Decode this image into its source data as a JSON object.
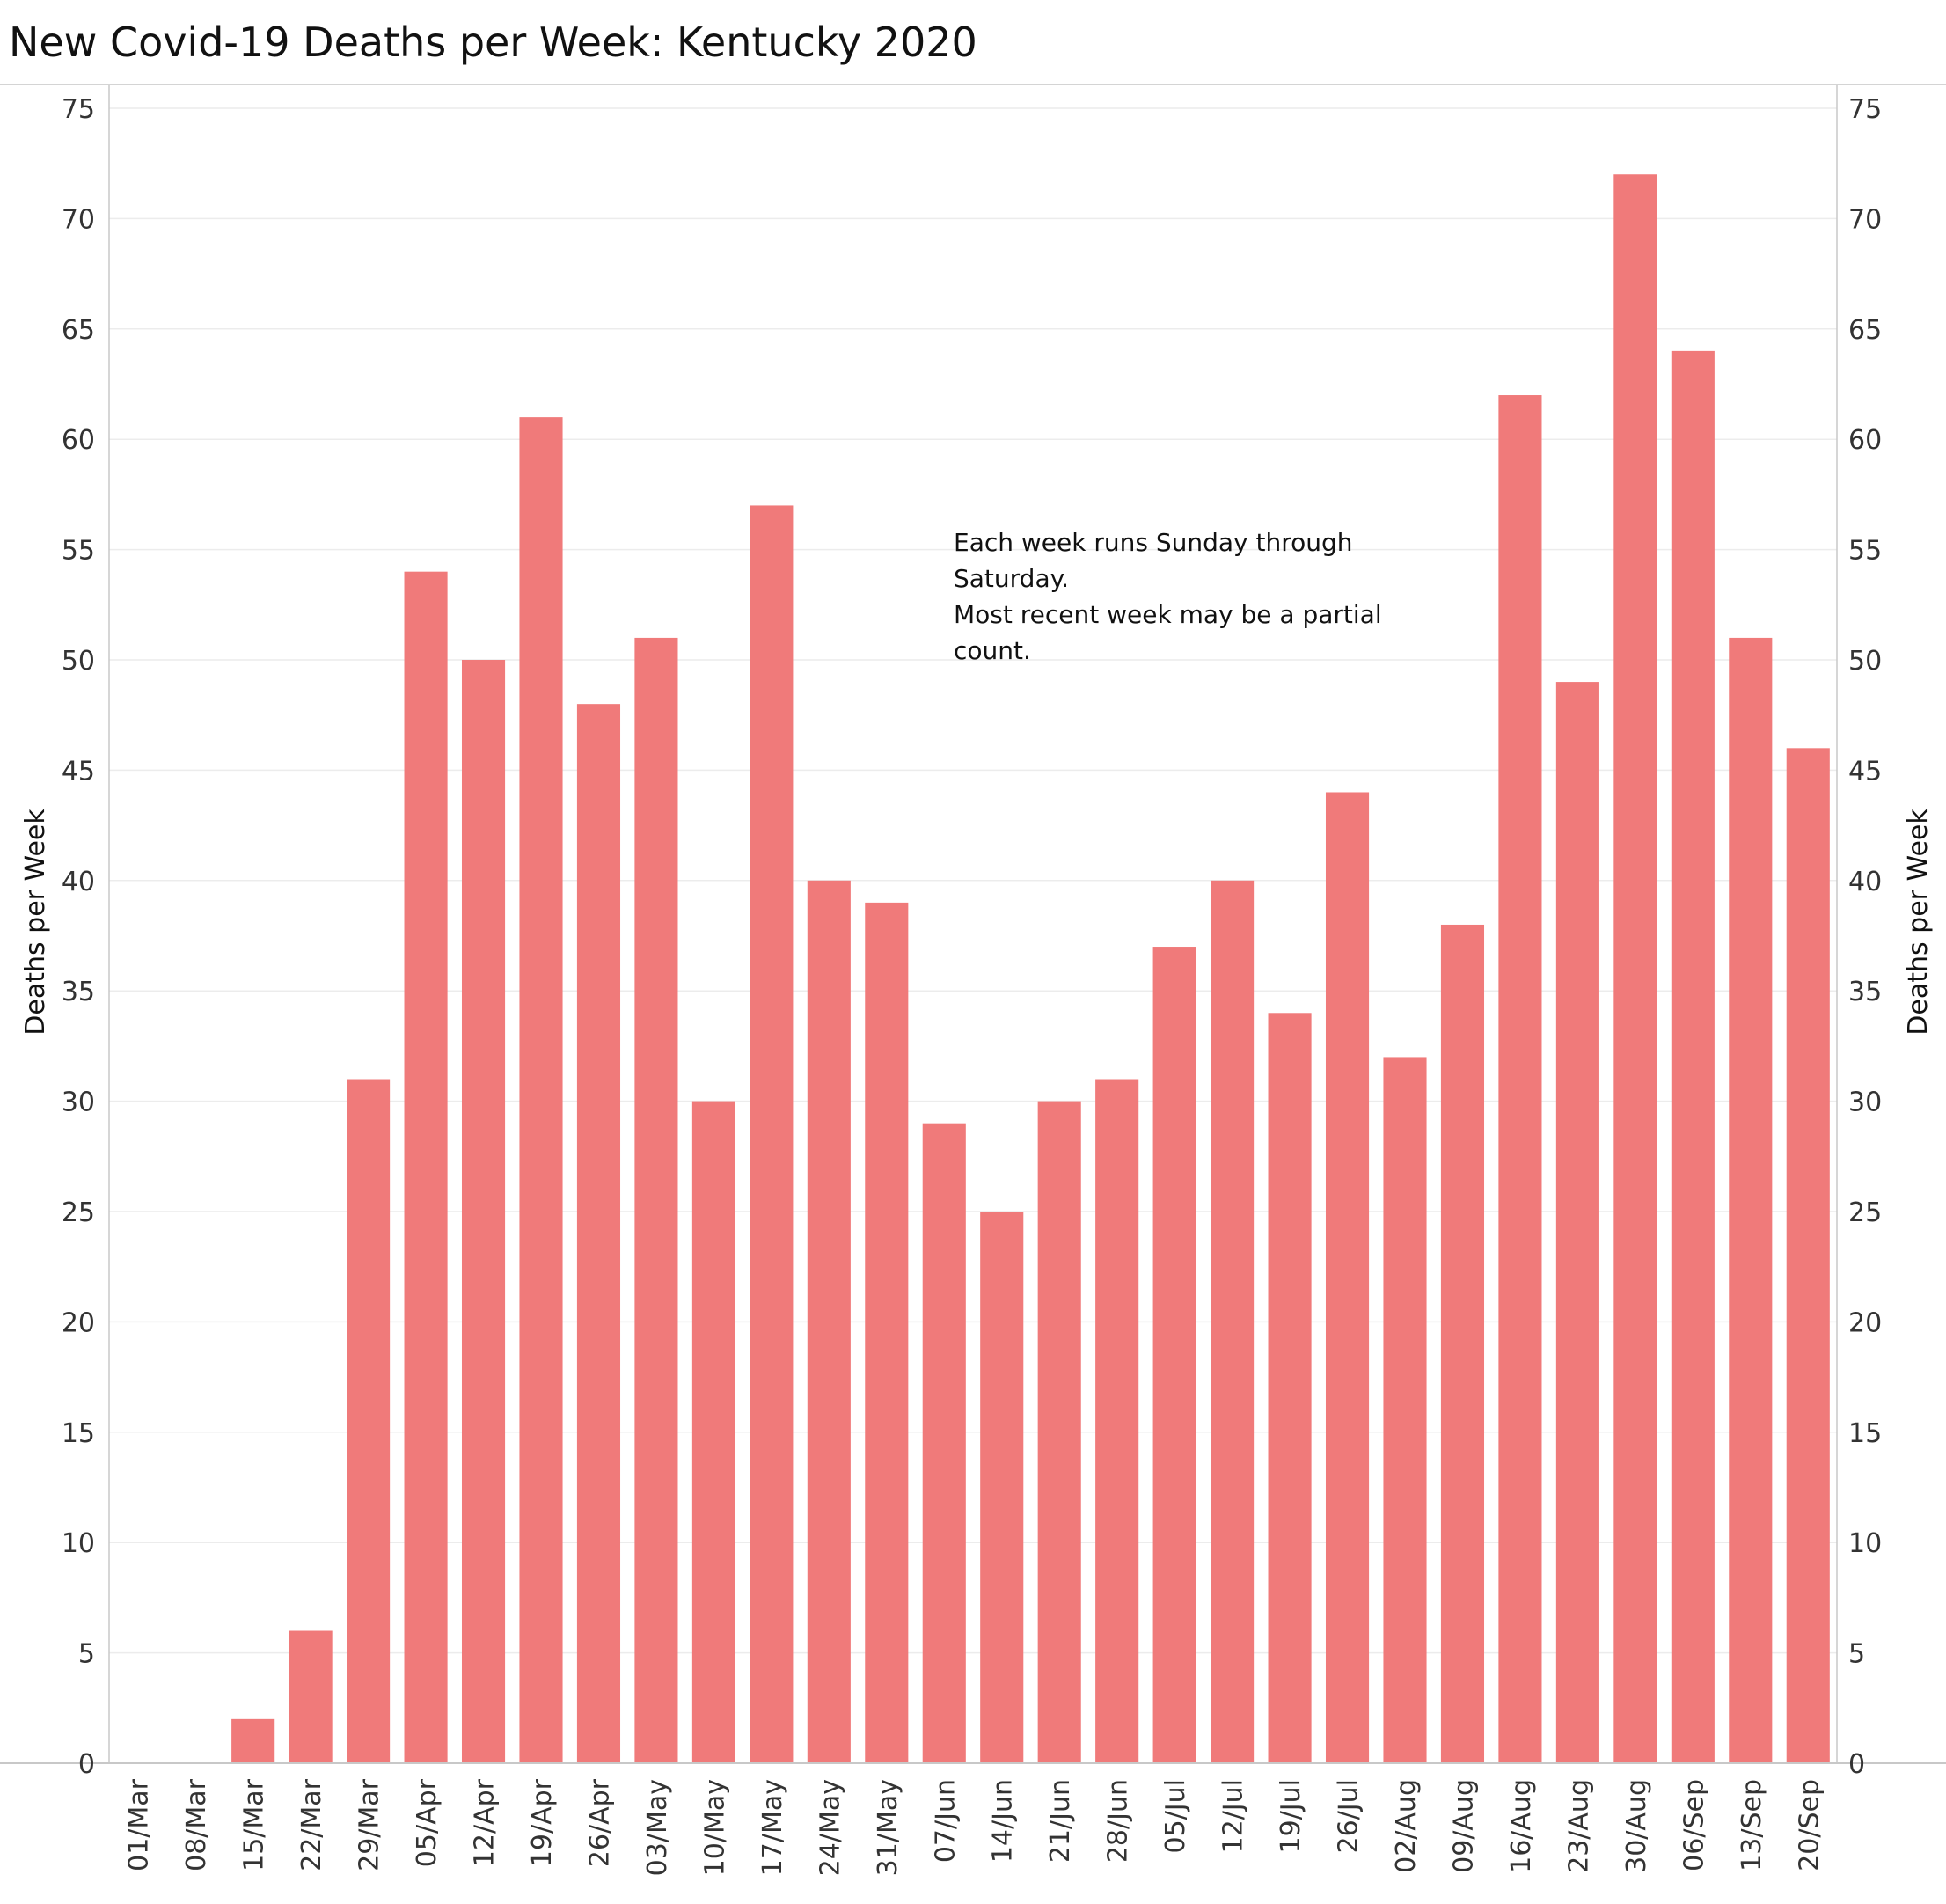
{
  "title": "New Covid-19 Deaths per Week:  Kentucky 2020",
  "annotation": {
    "lines": [
      "Each week runs Sunday through",
      "Saturday.",
      "Most recent week may be a partial",
      "count."
    ]
  },
  "colors": {
    "bar": "#f07a7a",
    "grid": "#ececec",
    "axis_line": "#c8c8c8"
  },
  "chart_data": {
    "type": "bar",
    "title": "New Covid-19 Deaths per Week:  Kentucky 2020",
    "ylabel": "Deaths per Week",
    "ylabel_right": "Deaths per Week",
    "xlabel": "",
    "ylim": [
      0,
      75
    ],
    "yticks": [
      0,
      5,
      10,
      15,
      20,
      25,
      30,
      35,
      40,
      45,
      50,
      55,
      60,
      65,
      70,
      75
    ],
    "grid": true,
    "legend": "none",
    "categories": [
      "01/Mar",
      "08/Mar",
      "15/Mar",
      "22/Mar",
      "29/Mar",
      "05/Apr",
      "12/Apr",
      "19/Apr",
      "26/Apr",
      "03/May",
      "10/May",
      "17/May",
      "24/May",
      "31/May",
      "07/Jun",
      "14/Jun",
      "21/Jun",
      "28/Jun",
      "05/Jul",
      "12/Jul",
      "19/Jul",
      "26/Jul",
      "02/Aug",
      "09/Aug",
      "16/Aug",
      "23/Aug",
      "30/Aug",
      "06/Sep",
      "13/Sep",
      "20/Sep"
    ],
    "values": [
      0,
      0,
      2,
      6,
      31,
      54,
      50,
      61,
      48,
      51,
      30,
      57,
      40,
      39,
      29,
      25,
      30,
      31,
      37,
      40,
      34,
      44,
      32,
      38,
      62,
      49,
      72,
      64,
      51,
      46
    ]
  }
}
